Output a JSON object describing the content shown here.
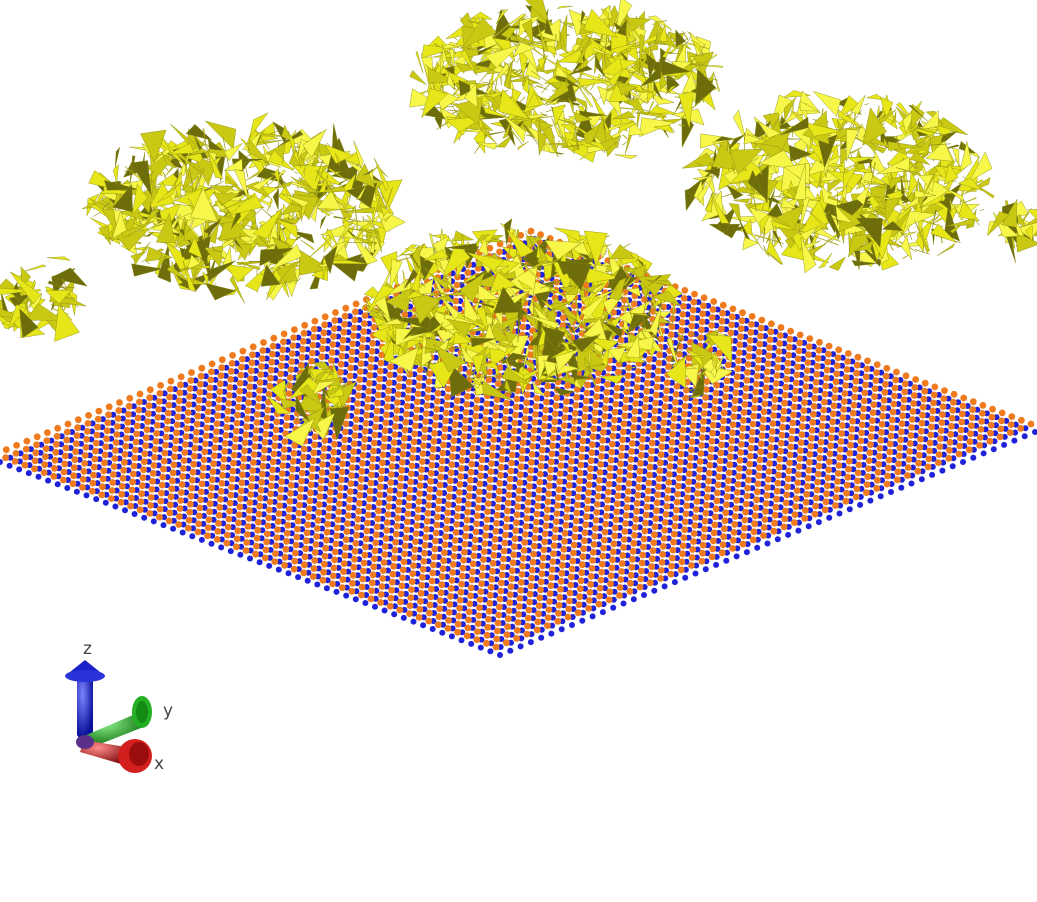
{
  "scene": {
    "background": "#ffffff",
    "substrate": {
      "colors": {
        "atom_a": "#f07a1e",
        "atom_b": "#1f22d8"
      }
    },
    "clusters": {
      "count": 8,
      "colors": {
        "base": "#e6e619",
        "light": "#f7f74a",
        "mid": "#c9c914",
        "dark": "#6d6d0c"
      }
    }
  },
  "axes": {
    "labels": {
      "z": "z",
      "y": "y",
      "x": "x"
    },
    "colors": {
      "z": "#1a22c8",
      "y": "#1fa61f",
      "x": "#cc1a1a"
    }
  }
}
